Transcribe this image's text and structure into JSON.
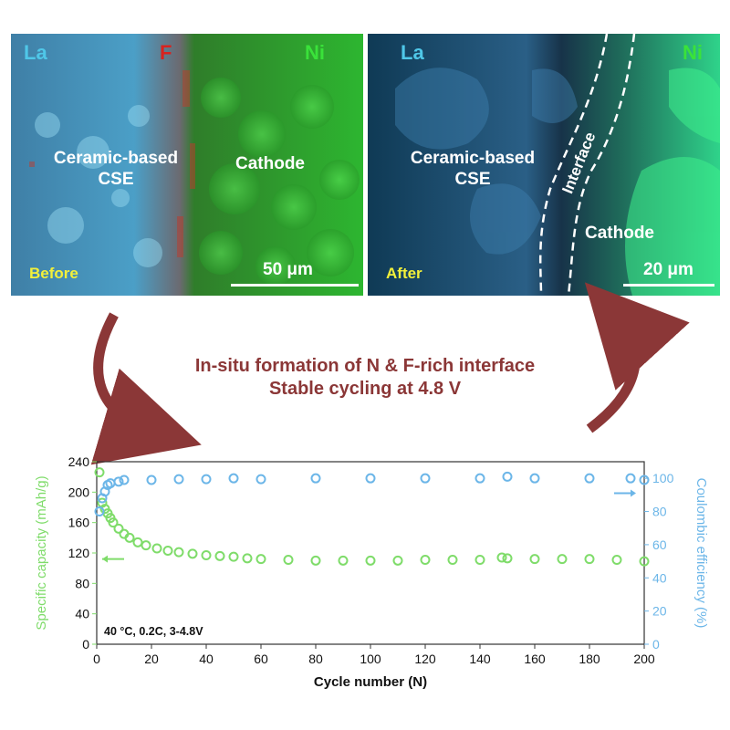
{
  "panels": {
    "before": {
      "elem_left": "La",
      "elem_mid": "F",
      "elem_right": "Ni",
      "region_left_line1": "Ceramic-based",
      "region_left_line2": "CSE",
      "region_right": "Cathode",
      "state": "Before",
      "scale": "50 μm",
      "colors": {
        "la": "#4fc7e8",
        "f": "#d8231f",
        "ni": "#3ae23a"
      }
    },
    "after": {
      "elem_left": "La",
      "elem_right": "Ni",
      "region_left_line1": "Ceramic-based",
      "region_left_line2": "CSE",
      "interface": "Interface",
      "region_right": "Cathode",
      "state": "After",
      "scale": "20 μm"
    }
  },
  "headline": {
    "line1": "In-situ formation of N & F-rich interface",
    "line2": "Stable cycling at 4.8 V",
    "color": "#8b3737"
  },
  "chart_data": {
    "type": "scatter",
    "xlabel": "Cycle number (N)",
    "ylabel_left": "Specific capacity (mAh/g)",
    "ylabel_right": "Coulombic efficiency (%)",
    "xlim": [
      0,
      200
    ],
    "xticks": [
      0,
      20,
      40,
      60,
      80,
      100,
      120,
      140,
      160,
      180,
      200
    ],
    "ylim_left": [
      0,
      240
    ],
    "yticks_left": [
      0,
      40,
      80,
      120,
      160,
      200,
      240
    ],
    "ylim_right": [
      0,
      110
    ],
    "yticks_right": [
      0,
      20,
      40,
      60,
      80,
      100
    ],
    "annotation": "40 °C, 0.2C, 3-4.8V",
    "series": [
      {
        "axis": "left",
        "color": "#7fdc6a",
        "points": [
          [
            1,
            226
          ],
          [
            2,
            186
          ],
          [
            3,
            178
          ],
          [
            4,
            172
          ],
          [
            5,
            166
          ],
          [
            6,
            160
          ],
          [
            8,
            152
          ],
          [
            10,
            145
          ],
          [
            12,
            140
          ],
          [
            15,
            134
          ],
          [
            18,
            130
          ],
          [
            22,
            126
          ],
          [
            26,
            123
          ],
          [
            30,
            121
          ],
          [
            35,
            119
          ],
          [
            40,
            117
          ],
          [
            45,
            116
          ],
          [
            50,
            115
          ],
          [
            55,
            113
          ],
          [
            60,
            112
          ],
          [
            70,
            111
          ],
          [
            80,
            110
          ],
          [
            90,
            110
          ],
          [
            100,
            110
          ],
          [
            110,
            110
          ],
          [
            120,
            111
          ],
          [
            130,
            111
          ],
          [
            140,
            111
          ],
          [
            148,
            114
          ],
          [
            150,
            113
          ],
          [
            160,
            112
          ],
          [
            170,
            112
          ],
          [
            180,
            112
          ],
          [
            190,
            111
          ],
          [
            200,
            109
          ]
        ]
      },
      {
        "axis": "right",
        "color": "#6cb6e8",
        "points": [
          [
            1,
            80
          ],
          [
            2,
            88
          ],
          [
            3,
            92
          ],
          [
            4,
            96
          ],
          [
            5,
            97
          ],
          [
            8,
            98
          ],
          [
            10,
            99
          ],
          [
            20,
            99
          ],
          [
            30,
            99.5
          ],
          [
            40,
            99.5
          ],
          [
            50,
            100
          ],
          [
            60,
            99.5
          ],
          [
            80,
            100
          ],
          [
            100,
            100
          ],
          [
            120,
            100
          ],
          [
            140,
            100
          ],
          [
            150,
            101
          ],
          [
            160,
            100
          ],
          [
            180,
            100
          ],
          [
            195,
            100
          ],
          [
            200,
            99
          ]
        ]
      }
    ]
  }
}
